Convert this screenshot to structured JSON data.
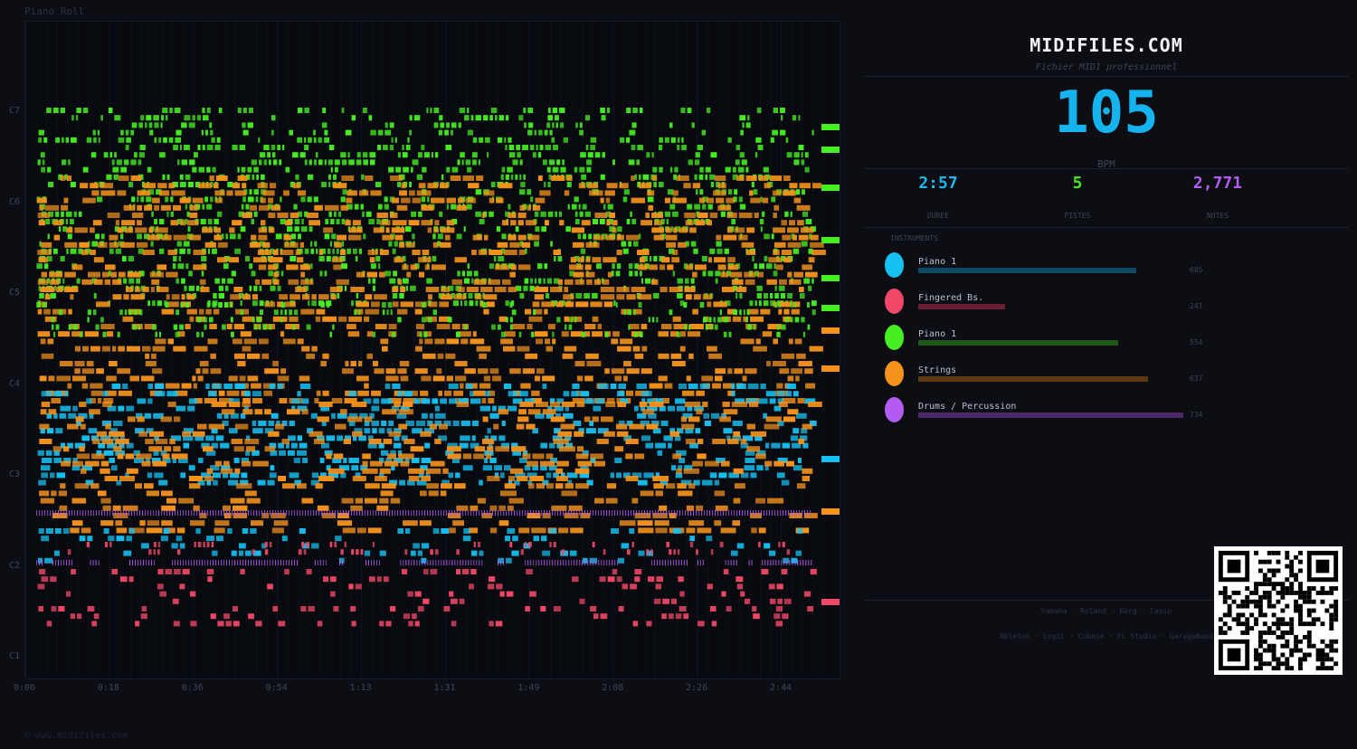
{
  "piano_roll": {
    "title": "Piano Roll",
    "note_labels": [
      "C7",
      "C6",
      "C5",
      "C4",
      "C3",
      "C2",
      "C1"
    ],
    "time_labels": [
      "0:00",
      "0:18",
      "0:36",
      "0:54",
      "1:13",
      "1:31",
      "1:49",
      "2:08",
      "2:26",
      "2:44"
    ]
  },
  "footer": {
    "copyright": "© www.midifiles.com"
  },
  "panel": {
    "brand": "MIDIFILES.COM",
    "tagline": "Fichier MIDI professionnel",
    "bpm_value": "105",
    "bpm_label": "BPM",
    "stats": [
      {
        "value": "2:57",
        "label": "DUREE",
        "color": "#1eb6ec"
      },
      {
        "value": "5",
        "label": "PISTES",
        "color": "#46e62a"
      },
      {
        "value": "2,771",
        "label": "NOTES",
        "color": "#b35cf0"
      }
    ],
    "instruments_heading": "INSTRUMENTS",
    "instruments": [
      {
        "name": "Piano 1",
        "count": "605",
        "color": "#16c0f0",
        "bar_color": "#0d4b62",
        "fraction": 0.824
      },
      {
        "name": "Fingered Bs.",
        "count": "241",
        "color": "#f24868",
        "bar_color": "#6a1f34",
        "fraction": 0.328
      },
      {
        "name": "Piano 1",
        "count": "554",
        "color": "#46ef22",
        "bar_color": "#1d5a1a",
        "fraction": 0.755
      },
      {
        "name": "Strings",
        "count": "637",
        "color": "#f4921c",
        "bar_color": "#5e3a12",
        "fraction": 0.868
      },
      {
        "name": "Drums / Percussion",
        "count": "734",
        "color": "#b45cf2",
        "bar_color": "#4a2a66",
        "fraction": 1.0
      }
    ],
    "brands_line1": "Yamaha · Roland · Korg · Casio",
    "brands_line2": "Ableton · Logic · Cubase · FL Studio · GarageBand"
  }
}
